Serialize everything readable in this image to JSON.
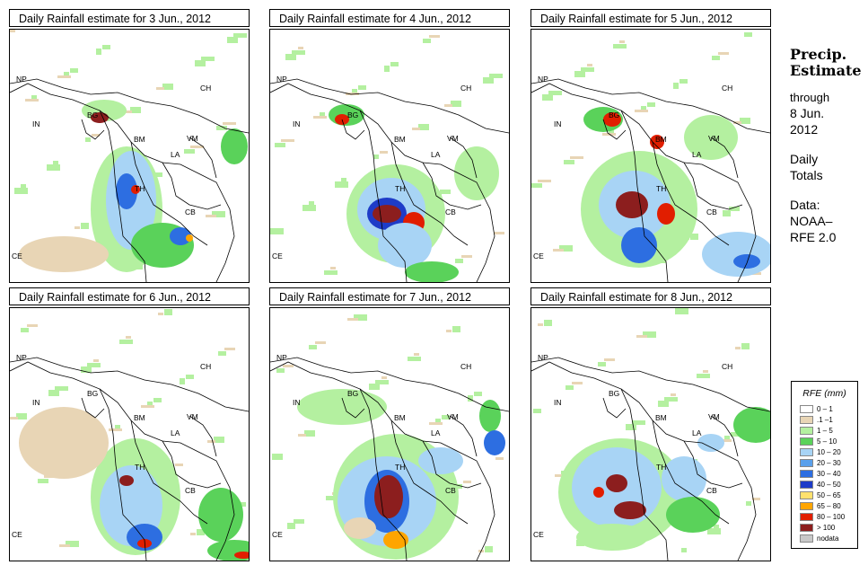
{
  "panels": [
    {
      "title": "Daily Rainfall estimate for  3 Jun., 2012"
    },
    {
      "title": "Daily Rainfall estimate for  4 Jun., 2012"
    },
    {
      "title": "Daily Rainfall estimate for  5 Jun., 2012"
    },
    {
      "title": "Daily Rainfall estimate for  6 Jun., 2012"
    },
    {
      "title": "Daily Rainfall estimate for  7 Jun., 2012"
    },
    {
      "title": "Daily Rainfall estimate for  8 Jun., 2012"
    }
  ],
  "country_labels": {
    "np": "NP",
    "ch": "CH",
    "in": "IN",
    "bg": "BG",
    "bm": "BM",
    "vm": "VM",
    "la": "LA",
    "th": "TH",
    "cb": "CB",
    "ce": "CE"
  },
  "side": {
    "heading_1": "Precip.",
    "heading_2": "Estimate",
    "through": "through",
    "date_1": "8 Jun.",
    "date_2": "2012",
    "daily": "Daily",
    "totals": "Totals",
    "data_1": "Data:",
    "data_2": "NOAA–",
    "data_3": "RFE 2.0"
  },
  "legend": {
    "title": "RFE (mm)",
    "items": [
      {
        "label": "0 – 1",
        "color": "#ffffff"
      },
      {
        "label": ".1 –1",
        "color": "#e8d5b5"
      },
      {
        "label": "1 – 5",
        "color": "#b4f0a0"
      },
      {
        "label": "5 – 10",
        "color": "#5ad25a"
      },
      {
        "label": "10 – 20",
        "color": "#a8d4f5"
      },
      {
        "label": "20 – 30",
        "color": "#5aa0eb"
      },
      {
        "label": "30 – 40",
        "color": "#2d6ee1"
      },
      {
        "label": "40 – 50",
        "color": "#1e3cc8"
      },
      {
        "label": "50 – 65",
        "color": "#ffe16e"
      },
      {
        "label": "65 – 80",
        "color": "#ffa500"
      },
      {
        "label": "80 – 100",
        "color": "#e11e00"
      },
      {
        "label": "> 100",
        "color": "#8c1e1e"
      },
      {
        "label": "nodata",
        "color": "#c8c8c8"
      }
    ]
  }
}
